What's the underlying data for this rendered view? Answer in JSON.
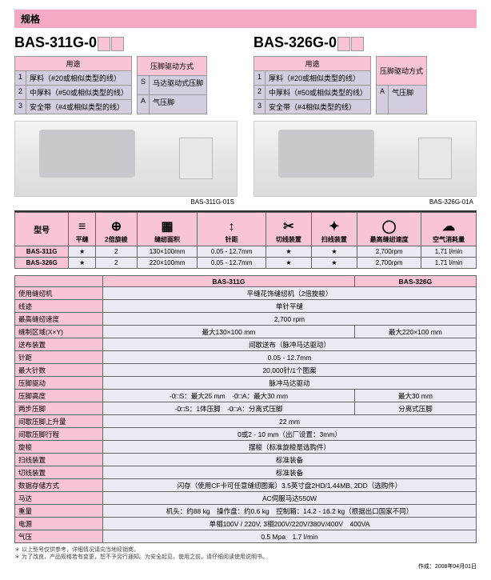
{
  "section_title": "规格",
  "models": [
    {
      "name_prefix": "BAS-311G-0",
      "usage_header": "用途",
      "presser_header": "压脚驱动方式",
      "usage_rows": [
        {
          "n": "1",
          "txt": "厚料（#20或相似类型的线）"
        },
        {
          "n": "2",
          "txt": "中厚料（#50或相似类型的线）"
        },
        {
          "n": "3",
          "txt": "安全带（#4或相似类型的线）"
        }
      ],
      "presser_rows": [
        {
          "c": "S",
          "txt": "马达驱动式压脚"
        },
        {
          "c": "A",
          "txt": "气压脚"
        }
      ],
      "caption": "BAS-311G-01S"
    },
    {
      "name_prefix": "BAS-326G-0",
      "usage_header": "用途",
      "presser_header": "压脚驱动方式",
      "usage_rows": [
        {
          "n": "1",
          "txt": "厚料（#20或相似类型的线）"
        },
        {
          "n": "2",
          "txt": "中厚料（#50或相似类型的线）"
        },
        {
          "n": "3",
          "txt": "安全带（#4相似类型的线）"
        }
      ],
      "presser_rows": [
        {
          "c": "A",
          "txt": "气压脚"
        }
      ],
      "caption": "BAS-326G-01A"
    }
  ],
  "icons_header_model": "型号",
  "icons_headers": [
    {
      "icon": "≡",
      "label": "平缝"
    },
    {
      "icon": "⊕",
      "label": "2倍旋梭"
    },
    {
      "icon": "▦",
      "label": "缝纫面积"
    },
    {
      "icon": "↕",
      "label": "针距"
    },
    {
      "icon": "✂",
      "label": "切线装置"
    },
    {
      "icon": "✦",
      "label": "扫线装置"
    },
    {
      "icon": "◯",
      "label": "最高缝纫速度"
    },
    {
      "icon": "☁",
      "label": "空气消耗量"
    }
  ],
  "icons_rows": [
    {
      "model": "BAS-311G",
      "vals": [
        "★",
        "2",
        "130×100mm",
        "0.05 - 12.7mm",
        "★",
        "★",
        "2,700rpm",
        "1.71 l/min"
      ]
    },
    {
      "model": "BAS-326G",
      "vals": [
        "★",
        "2",
        "220×100mm",
        "0.05 - 12.7mm",
        "★",
        "★",
        "2,700rpm",
        "1.71 l/min"
      ]
    }
  ],
  "detail_cols": [
    "BAS-311G",
    "BAS-326G"
  ],
  "detail_rows": [
    {
      "k": "使用缝纫机",
      "v": [
        "平缝花饰缝纫机（2倍旋梭）"
      ],
      "span": 2
    },
    {
      "k": "线迹",
      "v": [
        "单针平缝"
      ],
      "span": 2
    },
    {
      "k": "最高缝纫速度",
      "v": [
        "2,700 rpm"
      ],
      "span": 2
    },
    {
      "k": "缝制区域(X×Y)",
      "v": [
        "最大130×100 mm",
        "最大220×100 mm"
      ]
    },
    {
      "k": "送布装置",
      "v": [
        "间歇送布（脉冲马达驱动）"
      ],
      "span": 2
    },
    {
      "k": "针距",
      "v": [
        "0.05 - 12.7mm"
      ],
      "span": 2
    },
    {
      "k": "最大针数",
      "v": [
        "20,000针/1个图案"
      ],
      "span": 2
    },
    {
      "k": "压脚驱动",
      "v": [
        "脉冲马达驱动"
      ],
      "span": 2
    },
    {
      "k": "压脚高度",
      "v": [
        "-0□S：最大25 mm　-0□A：最大30 mm",
        "最大30 mm"
      ]
    },
    {
      "k": "两步压脚",
      "v": [
        "-0□S：1体压脚　-0□A：分离式压脚",
        "分离式压脚"
      ]
    },
    {
      "k": "间歇压脚上升量",
      "v": [
        "22 mm"
      ],
      "span": 2
    },
    {
      "k": "间歇压脚行程",
      "v": [
        "0或2 - 10 mm（出厂设置：3mm）"
      ],
      "span": 2
    },
    {
      "k": "旋梭",
      "v": [
        "摆梭（标准旋梭是选购件）"
      ],
      "span": 2
    },
    {
      "k": "扫线装置",
      "v": [
        "标准装备"
      ],
      "span": 2
    },
    {
      "k": "切线装置",
      "v": [
        "标准装备"
      ],
      "span": 2
    },
    {
      "k": "数据存储方式",
      "v": [
        "闪存（使用CF卡可任意缝纫图案）3.5英寸盘2HD/1.44MB, 2DD（选购件）"
      ],
      "span": 2
    },
    {
      "k": "马达",
      "v": [
        "AC伺服马达550W"
      ],
      "span": 2
    },
    {
      "k": "重量",
      "v": [
        "机头：约88 kg　操作盘：约0.6 kg　控制箱：14.2 - 16.2 kg（根据出口国家不同）"
      ],
      "span": 2
    },
    {
      "k": "电源",
      "v": [
        "单相100V / 220V, 3相200V/220V/380V/400V　400VA"
      ],
      "span": 2
    },
    {
      "k": "气压",
      "v": [
        "0.5 Mpa　1.7 l/min"
      ],
      "span": 2
    }
  ],
  "note1": "＊ 以上型号仅供参考，详细情况请向当地经销商。",
  "note2": "＊ 为了改良，产品规格若有变更，恕不予另行通知。为安全起见，使用之前，请仔细阅读使用说明书。",
  "footer_date": "作成：2008年04月01日"
}
